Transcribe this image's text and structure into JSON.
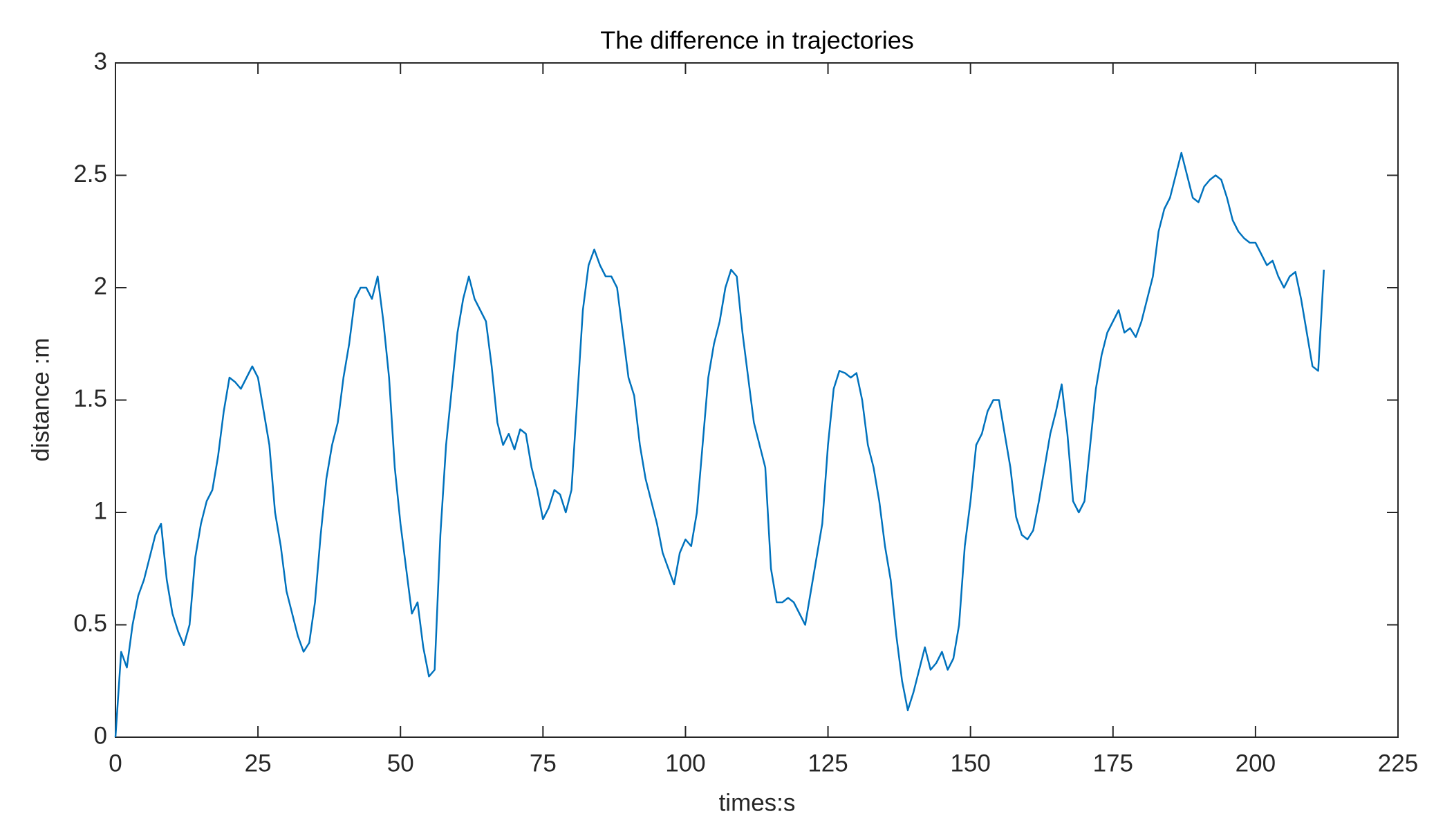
{
  "chart_data": {
    "type": "line",
    "title": "The difference in trajectories",
    "xlabel": "times:s",
    "ylabel": "distance :m",
    "color": "#0072bd",
    "grid": false,
    "xlim": [
      0,
      225
    ],
    "ylim": [
      0,
      3
    ],
    "xticks": [
      0,
      25,
      50,
      75,
      100,
      125,
      150,
      175,
      200,
      225
    ],
    "yticks": [
      0,
      0.5,
      1,
      1.5,
      2,
      2.5,
      3
    ],
    "x": [
      0,
      1,
      2,
      3,
      4,
      5,
      6,
      7,
      8,
      9,
      10,
      11,
      12,
      13,
      14,
      15,
      16,
      17,
      18,
      19,
      20,
      21,
      22,
      23,
      24,
      25,
      26,
      27,
      28,
      29,
      30,
      31,
      32,
      33,
      34,
      35,
      36,
      37,
      38,
      39,
      40,
      41,
      42,
      43,
      44,
      45,
      46,
      47,
      48,
      49,
      50,
      51,
      52,
      53,
      54,
      55,
      56,
      57,
      58,
      59,
      60,
      61,
      62,
      63,
      64,
      65,
      66,
      67,
      68,
      69,
      70,
      71,
      72,
      73,
      74,
      75,
      76,
      77,
      78,
      79,
      80,
      81,
      82,
      83,
      84,
      85,
      86,
      87,
      88,
      89,
      90,
      91,
      92,
      93,
      94,
      95,
      96,
      97,
      98,
      99,
      100,
      101,
      102,
      103,
      104,
      105,
      106,
      107,
      108,
      109,
      110,
      111,
      112,
      113,
      114,
      115,
      116,
      117,
      118,
      119,
      120,
      121,
      122,
      123,
      124,
      125,
      126,
      127,
      128,
      129,
      130,
      131,
      132,
      133,
      134,
      135,
      136,
      137,
      138,
      139,
      140,
      141,
      142,
      143,
      144,
      145,
      146,
      147,
      148,
      149,
      150,
      151,
      152,
      153,
      154,
      155,
      156,
      157,
      158,
      159,
      160,
      161,
      162,
      163,
      164,
      165,
      166,
      167,
      168,
      169,
      170,
      171,
      172,
      173,
      174,
      175,
      176,
      177,
      178,
      179,
      180,
      181,
      182,
      183,
      184,
      185,
      186,
      187,
      188,
      189,
      190,
      191,
      192,
      193,
      194,
      195,
      196,
      197,
      198,
      199,
      200,
      201,
      202,
      203,
      204,
      205,
      206,
      207,
      208,
      209,
      210,
      211,
      212
    ],
    "values": [
      0,
      0.38,
      0.31,
      0.5,
      0.63,
      0.7,
      0.8,
      0.9,
      0.95,
      0.7,
      0.55,
      0.47,
      0.41,
      0.5,
      0.8,
      0.95,
      1.05,
      1.1,
      1.25,
      1.45,
      1.6,
      1.58,
      1.55,
      1.6,
      1.65,
      1.6,
      1.45,
      1.3,
      1.0,
      0.85,
      0.65,
      0.55,
      0.45,
      0.38,
      0.42,
      0.6,
      0.9,
      1.15,
      1.3,
      1.4,
      1.6,
      1.75,
      1.95,
      2.0,
      2.0,
      1.95,
      2.05,
      1.85,
      1.6,
      1.2,
      0.95,
      0.75,
      0.55,
      0.6,
      0.4,
      0.27,
      0.3,
      0.9,
      1.3,
      1.55,
      1.8,
      1.95,
      2.05,
      1.95,
      1.9,
      1.85,
      1.65,
      1.4,
      1.3,
      1.35,
      1.28,
      1.37,
      1.35,
      1.2,
      1.1,
      0.97,
      1.02,
      1.1,
      1.08,
      1.0,
      1.1,
      1.5,
      1.9,
      2.1,
      2.17,
      2.1,
      2.05,
      2.05,
      2.0,
      1.8,
      1.6,
      1.52,
      1.3,
      1.15,
      1.05,
      0.95,
      0.82,
      0.75,
      0.68,
      0.82,
      0.88,
      0.85,
      1.0,
      1.3,
      1.6,
      1.75,
      1.85,
      2.0,
      2.08,
      2.05,
      1.8,
      1.6,
      1.4,
      1.3,
      1.2,
      0.75,
      0.6,
      0.6,
      0.62,
      0.6,
      0.55,
      0.5,
      0.65,
      0.8,
      0.95,
      1.3,
      1.55,
      1.63,
      1.62,
      1.6,
      1.62,
      1.5,
      1.3,
      1.2,
      1.05,
      0.85,
      0.7,
      0.45,
      0.25,
      0.12,
      0.2,
      0.3,
      0.4,
      0.3,
      0.33,
      0.38,
      0.3,
      0.35,
      0.5,
      0.85,
      1.05,
      1.3,
      1.35,
      1.45,
      1.5,
      1.5,
      1.35,
      1.2,
      0.98,
      0.9,
      0.88,
      0.92,
      1.05,
      1.2,
      1.35,
      1.45,
      1.57,
      1.35,
      1.05,
      1.0,
      1.05,
      1.3,
      1.55,
      1.7,
      1.8,
      1.85,
      1.9,
      1.8,
      1.82,
      1.78,
      1.85,
      1.95,
      2.05,
      2.25,
      2.35,
      2.4,
      2.5,
      2.6,
      2.5,
      2.4,
      2.38,
      2.45,
      2.48,
      2.5,
      2.48,
      2.4,
      2.3,
      2.25,
      2.22,
      2.2,
      2.2,
      2.15,
      2.1,
      2.12,
      2.05,
      2.0,
      2.05,
      2.07,
      1.95,
      1.8,
      1.65,
      1.63,
      2.08
    ]
  }
}
